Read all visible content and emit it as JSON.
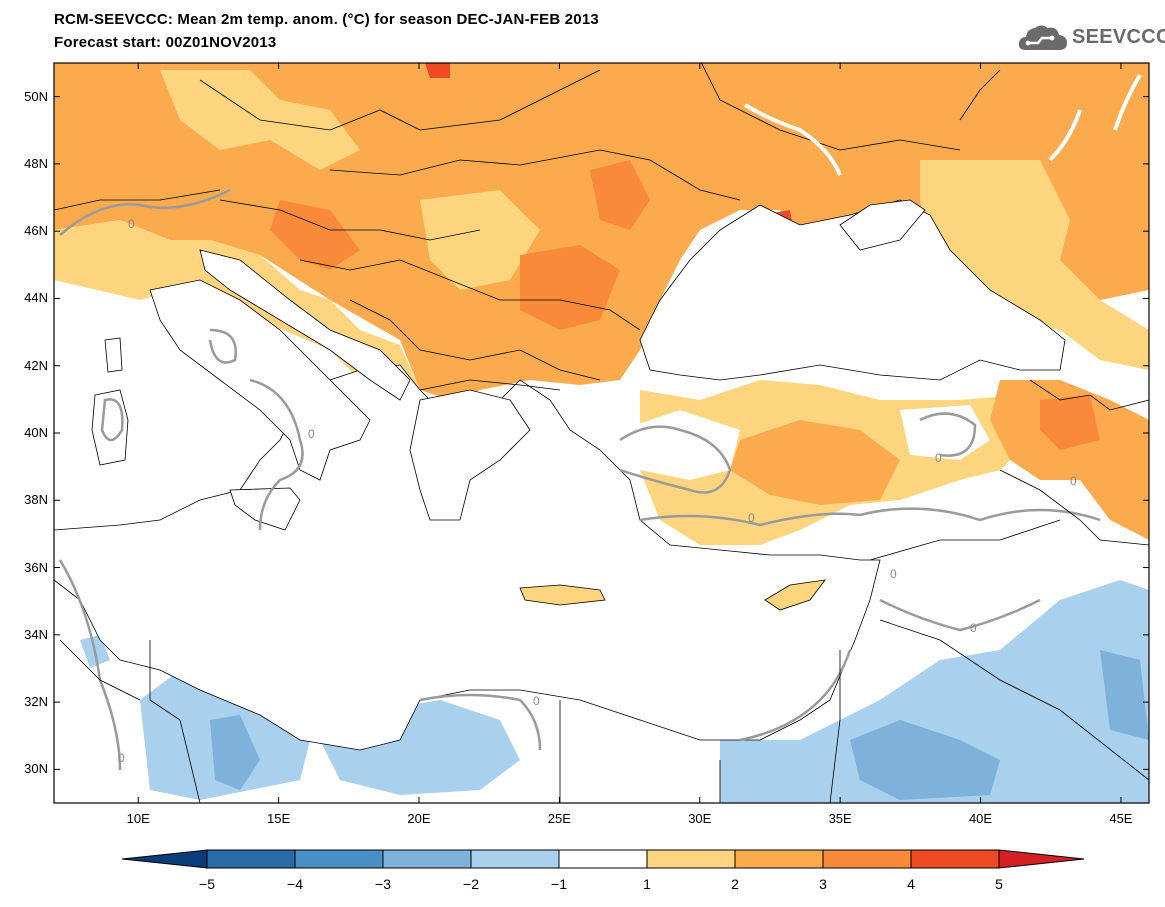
{
  "header": {
    "title_line1": "RCM-SEEVCCC: Mean 2m temp. anom. (°C) for season DEC-JAN-FEB 2013",
    "title_line2": "Forecast start: 00Z01NOV2013"
  },
  "logo": {
    "text": "SEEVCCC",
    "icon": "cloud-icon",
    "color": "#6a6a6a"
  },
  "map": {
    "lon_range": [
      7,
      46
    ],
    "lat_range": [
      29,
      51
    ],
    "lat_ticks": [
      "50N",
      "48N",
      "46N",
      "44N",
      "42N",
      "40N",
      "38N",
      "36N",
      "34N",
      "32N",
      "30N"
    ],
    "lon_ticks": [
      "10E",
      "15E",
      "20E",
      "25E",
      "30E",
      "35E",
      "40E",
      "45E"
    ],
    "contour_label": "0"
  },
  "colorbar": {
    "levels": [
      "-5",
      "-4",
      "-3",
      "-2",
      "-1",
      "1",
      "2",
      "3",
      "4",
      "5"
    ],
    "colors": [
      "#0a3d7a",
      "#2b6aa8",
      "#4a8ec6",
      "#7eb2da",
      "#a9d0ec",
      "#ffffff",
      "#fdd57e",
      "#fcaa4e",
      "#f98a3a",
      "#ee4a25",
      "#d42023"
    ]
  },
  "colors": {
    "sea": "#ffffff",
    "land_neutral": "#ffffff",
    "border": "#000000",
    "contour_zero": "#9a9a9a"
  }
}
